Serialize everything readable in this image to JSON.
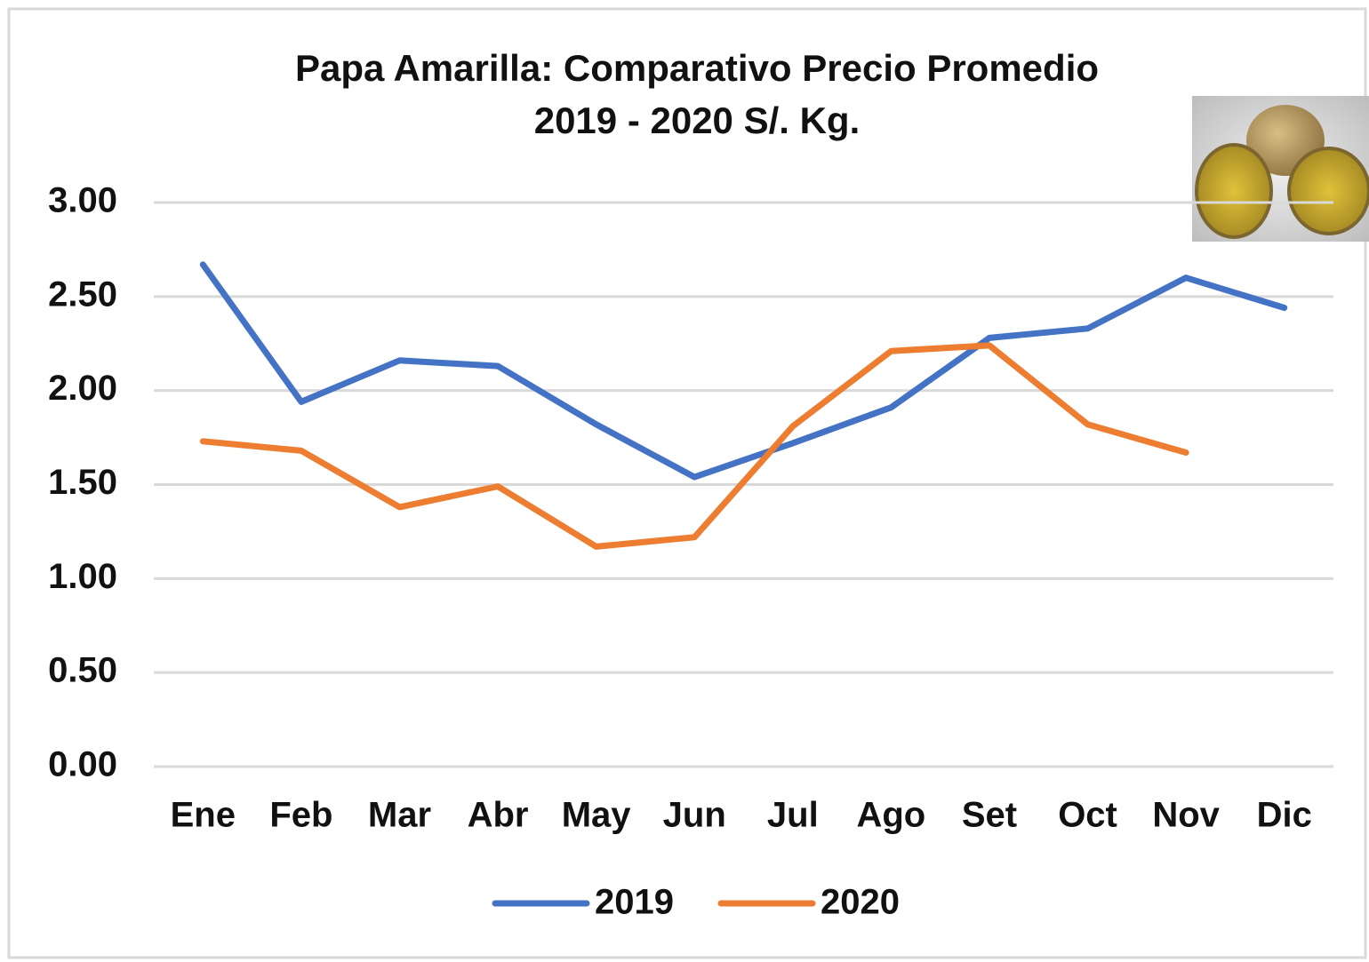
{
  "chart_data": {
    "type": "line",
    "title": "Papa Amarilla: Comparativo Precio Promedio",
    "subtitle": "2019 - 2020 S/. Kg.",
    "categories": [
      "Ene",
      "Feb",
      "Mar",
      "Abr",
      "May",
      "Jun",
      "Jul",
      "Ago",
      "Set",
      "Oct",
      "Nov",
      "Dic"
    ],
    "series": [
      {
        "name": "2019",
        "color": "#4472c4",
        "values": [
          2.67,
          1.94,
          2.16,
          2.13,
          1.82,
          1.54,
          1.72,
          1.91,
          2.28,
          2.33,
          2.6,
          2.44
        ]
      },
      {
        "name": "2020",
        "color": "#ed7d31",
        "values": [
          1.73,
          1.68,
          1.38,
          1.49,
          1.17,
          1.22,
          1.81,
          2.21,
          2.24,
          1.82,
          1.67,
          null
        ]
      }
    ],
    "ylim": [
      0,
      3
    ],
    "yticks": [
      {
        "value": 0,
        "label": "0.00"
      },
      {
        "value": 0.5,
        "label": "0.50"
      },
      {
        "value": 1,
        "label": "1.00"
      },
      {
        "value": 1.5,
        "label": "1.50"
      },
      {
        "value": 2,
        "label": "2.00"
      },
      {
        "value": 2.5,
        "label": "2.50"
      },
      {
        "value": 3,
        "label": "3.00"
      }
    ],
    "grid": true,
    "legend": "bottom"
  }
}
